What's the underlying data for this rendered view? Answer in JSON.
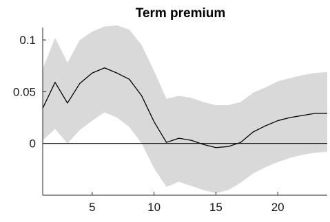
{
  "chart_data": {
    "type": "area",
    "title": "Term premium",
    "xlabel": "",
    "ylabel": "",
    "xlim": [
      1,
      24
    ],
    "ylim": [
      -0.05,
      0.112
    ],
    "grid": false,
    "xticks": [
      5,
      10,
      15,
      20
    ],
    "yticks": [
      0,
      0.05,
      0.1
    ],
    "xtick_labels": [
      "5",
      "10",
      "15",
      "20"
    ],
    "ytick_labels": [
      "0",
      "0.05",
      "0.1"
    ],
    "zero_line": 0,
    "x": [
      1,
      2,
      3,
      4,
      5,
      6,
      7,
      8,
      9,
      10,
      11,
      12,
      13,
      14,
      15,
      16,
      17,
      18,
      19,
      20,
      21,
      22,
      23,
      24
    ],
    "series": [
      {
        "type": "line",
        "color": "#000000",
        "values": [
          0.034,
          0.059,
          0.039,
          0.058,
          0.068,
          0.073,
          0.068,
          0.062,
          0.046,
          0.021,
          0.001,
          0.005,
          0.003,
          -0.001,
          -0.004,
          -0.003,
          0.001,
          0.011,
          0.017,
          0.022,
          0.025,
          0.027,
          0.029,
          0.029
        ]
      },
      {
        "type": "band",
        "color": "#d9d9d9",
        "lower": [
          0.003,
          0.014,
          0.0,
          0.013,
          0.022,
          0.03,
          0.025,
          0.016,
          0.0,
          -0.024,
          -0.042,
          -0.037,
          -0.041,
          -0.045,
          -0.048,
          -0.045,
          -0.038,
          -0.029,
          -0.023,
          -0.018,
          -0.014,
          -0.011,
          -0.009,
          -0.008
        ],
        "upper": [
          0.072,
          0.102,
          0.078,
          0.1,
          0.108,
          0.113,
          0.114,
          0.11,
          0.095,
          0.07,
          0.043,
          0.046,
          0.044,
          0.04,
          0.037,
          0.037,
          0.04,
          0.049,
          0.054,
          0.06,
          0.063,
          0.066,
          0.068,
          0.069
        ]
      }
    ]
  }
}
